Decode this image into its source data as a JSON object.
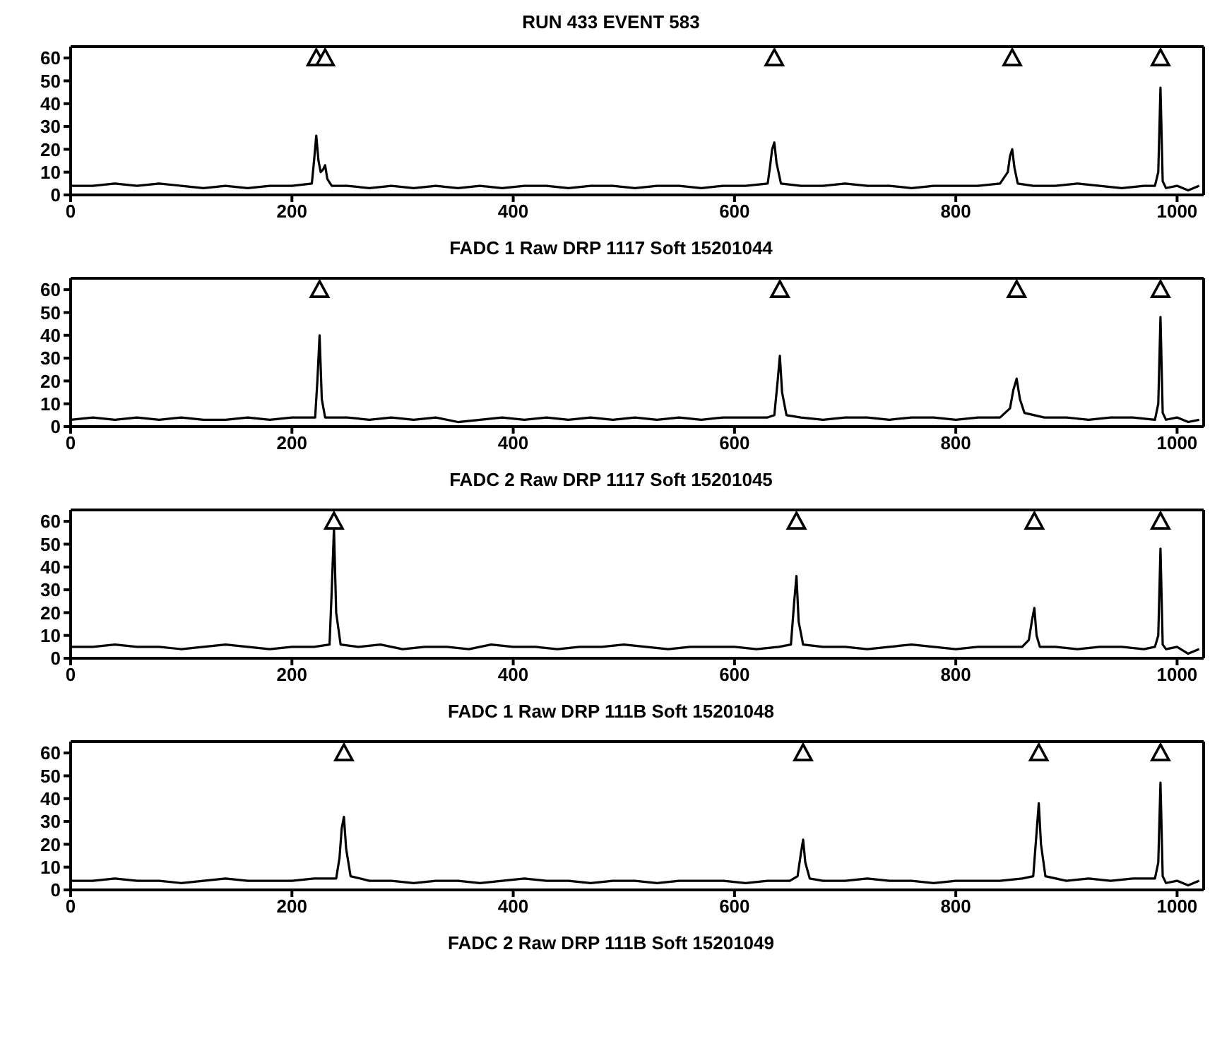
{
  "chart_data": [
    {
      "type": "line",
      "title": "RUN  433 EVENT  583",
      "xlabel": "FADC 1 Raw DRP 1117 Soft 15201044",
      "xlim": [
        0,
        1024
      ],
      "xticks": [
        0,
        200,
        400,
        600,
        800,
        1000
      ],
      "ylim": [
        0,
        65
      ],
      "yticks": [
        0,
        10,
        20,
        30,
        40,
        50,
        60
      ],
      "series": [
        {
          "type": "line",
          "color": "#000000",
          "marker": "none",
          "x": [
            0,
            20,
            40,
            60,
            80,
            100,
            120,
            140,
            160,
            180,
            200,
            218,
            220,
            222,
            224,
            226,
            228,
            230,
            232,
            236,
            250,
            270,
            290,
            310,
            330,
            350,
            370,
            390,
            410,
            430,
            450,
            470,
            490,
            510,
            530,
            550,
            570,
            590,
            610,
            630,
            632,
            634,
            636,
            638,
            642,
            660,
            680,
            700,
            720,
            740,
            760,
            780,
            800,
            820,
            840,
            847,
            849,
            851,
            853,
            856,
            870,
            890,
            910,
            930,
            950,
            970,
            980,
            983,
            985,
            987,
            990,
            1000,
            1010,
            1020
          ],
          "values": [
            4,
            4,
            5,
            4,
            5,
            4,
            3,
            4,
            3,
            4,
            4,
            5,
            15,
            26,
            15,
            10,
            11,
            13,
            7,
            4,
            4,
            3,
            4,
            3,
            4,
            3,
            4,
            3,
            4,
            4,
            3,
            4,
            4,
            3,
            4,
            4,
            3,
            4,
            4,
            5,
            12,
            20,
            23,
            14,
            5,
            4,
            4,
            5,
            4,
            4,
            3,
            4,
            4,
            4,
            5,
            10,
            17,
            20,
            12,
            5,
            4,
            4,
            5,
            4,
            3,
            4,
            4,
            10,
            47,
            6,
            3,
            4,
            2,
            4
          ]
        },
        {
          "type": "scatter",
          "color": "#000000",
          "marker": "triangle",
          "x": [
            222,
            230,
            636,
            851,
            985
          ],
          "values": [
            60,
            60,
            60,
            60,
            60
          ]
        }
      ]
    },
    {
      "type": "line",
      "xlabel": "FADC 2 Raw DRP 1117 Soft 15201045",
      "xlim": [
        0,
        1024
      ],
      "xticks": [
        0,
        200,
        400,
        600,
        800,
        1000
      ],
      "ylim": [
        0,
        65
      ],
      "yticks": [
        0,
        10,
        20,
        30,
        40,
        50,
        60
      ],
      "series": [
        {
          "type": "line",
          "color": "#000000",
          "marker": "none",
          "x": [
            0,
            20,
            40,
            60,
            80,
            100,
            120,
            140,
            160,
            180,
            200,
            221,
            223,
            225,
            227,
            230,
            250,
            270,
            290,
            310,
            330,
            350,
            370,
            390,
            410,
            430,
            450,
            470,
            490,
            510,
            530,
            550,
            570,
            590,
            610,
            630,
            636,
            639,
            641,
            643,
            647,
            660,
            680,
            700,
            720,
            740,
            760,
            780,
            800,
            820,
            840,
            849,
            852,
            855,
            858,
            862,
            880,
            900,
            920,
            940,
            960,
            980,
            983,
            985,
            987,
            990,
            1000,
            1010,
            1020
          ],
          "values": [
            3,
            4,
            3,
            4,
            3,
            4,
            3,
            3,
            4,
            3,
            4,
            4,
            20,
            40,
            12,
            4,
            4,
            3,
            4,
            3,
            4,
            2,
            3,
            4,
            3,
            4,
            3,
            4,
            3,
            4,
            3,
            4,
            3,
            4,
            4,
            4,
            5,
            20,
            31,
            15,
            5,
            4,
            3,
            4,
            4,
            3,
            4,
            4,
            3,
            4,
            4,
            8,
            16,
            21,
            12,
            6,
            4,
            4,
            3,
            4,
            4,
            3,
            10,
            48,
            6,
            3,
            4,
            2,
            3
          ]
        },
        {
          "type": "scatter",
          "color": "#000000",
          "marker": "triangle",
          "x": [
            225,
            641,
            855,
            985
          ],
          "values": [
            60,
            60,
            60,
            60
          ]
        }
      ]
    },
    {
      "type": "line",
      "xlabel": "FADC 1 Raw DRP 111B Soft 15201048",
      "xlim": [
        0,
        1024
      ],
      "xticks": [
        0,
        200,
        400,
        600,
        800,
        1000
      ],
      "ylim": [
        0,
        65
      ],
      "yticks": [
        0,
        10,
        20,
        30,
        40,
        50,
        60
      ],
      "series": [
        {
          "type": "line",
          "color": "#000000",
          "marker": "none",
          "x": [
            0,
            20,
            40,
            60,
            80,
            100,
            120,
            140,
            160,
            180,
            200,
            220,
            234,
            236,
            238,
            240,
            244,
            260,
            280,
            300,
            320,
            340,
            360,
            380,
            400,
            420,
            440,
            460,
            480,
            500,
            520,
            540,
            560,
            580,
            600,
            620,
            640,
            651,
            654,
            656,
            658,
            662,
            680,
            700,
            720,
            740,
            760,
            780,
            800,
            820,
            840,
            860,
            866,
            869,
            871,
            873,
            876,
            890,
            910,
            930,
            950,
            970,
            980,
            983,
            985,
            987,
            990,
            1000,
            1010,
            1020
          ],
          "values": [
            5,
            5,
            6,
            5,
            5,
            4,
            5,
            6,
            5,
            4,
            5,
            5,
            6,
            30,
            57,
            20,
            6,
            5,
            6,
            4,
            5,
            5,
            4,
            6,
            5,
            5,
            4,
            5,
            5,
            6,
            5,
            4,
            5,
            5,
            5,
            4,
            5,
            6,
            25,
            36,
            16,
            6,
            5,
            5,
            4,
            5,
            6,
            5,
            4,
            5,
            5,
            5,
            8,
            17,
            22,
            10,
            5,
            5,
            4,
            5,
            5,
            4,
            5,
            10,
            48,
            6,
            4,
            5,
            2,
            4
          ]
        },
        {
          "type": "scatter",
          "color": "#000000",
          "marker": "triangle",
          "x": [
            238,
            656,
            871,
            985
          ],
          "values": [
            60,
            60,
            60,
            60
          ]
        }
      ]
    },
    {
      "type": "line",
      "xlabel": "FADC 2 Raw DRP 111B Soft 15201049",
      "xlim": [
        0,
        1024
      ],
      "xticks": [
        0,
        200,
        400,
        600,
        800,
        1000
      ],
      "ylim": [
        0,
        65
      ],
      "yticks": [
        0,
        10,
        20,
        30,
        40,
        50,
        60
      ],
      "series": [
        {
          "type": "line",
          "color": "#000000",
          "marker": "none",
          "x": [
            0,
            20,
            40,
            60,
            80,
            100,
            120,
            140,
            160,
            180,
            200,
            220,
            240,
            243,
            245,
            247,
            249,
            253,
            270,
            290,
            310,
            330,
            350,
            370,
            390,
            410,
            430,
            450,
            470,
            490,
            510,
            530,
            550,
            570,
            590,
            610,
            630,
            650,
            657,
            660,
            662,
            664,
            668,
            680,
            700,
            720,
            740,
            760,
            780,
            800,
            820,
            840,
            860,
            870,
            873,
            875,
            877,
            881,
            900,
            920,
            940,
            960,
            980,
            983,
            985,
            987,
            990,
            1000,
            1010,
            1020
          ],
          "values": [
            4,
            4,
            5,
            4,
            4,
            3,
            4,
            5,
            4,
            4,
            4,
            5,
            5,
            14,
            27,
            32,
            18,
            6,
            4,
            4,
            3,
            4,
            4,
            3,
            4,
            5,
            4,
            4,
            3,
            4,
            4,
            3,
            4,
            4,
            4,
            3,
            4,
            4,
            6,
            16,
            22,
            12,
            5,
            4,
            4,
            5,
            4,
            4,
            3,
            4,
            4,
            4,
            5,
            6,
            25,
            38,
            20,
            6,
            4,
            5,
            4,
            5,
            5,
            12,
            47,
            6,
            3,
            4,
            2,
            4
          ]
        },
        {
          "type": "scatter",
          "color": "#000000",
          "marker": "triangle",
          "x": [
            247,
            662,
            875,
            985
          ],
          "values": [
            60,
            60,
            60,
            60
          ]
        }
      ]
    }
  ]
}
